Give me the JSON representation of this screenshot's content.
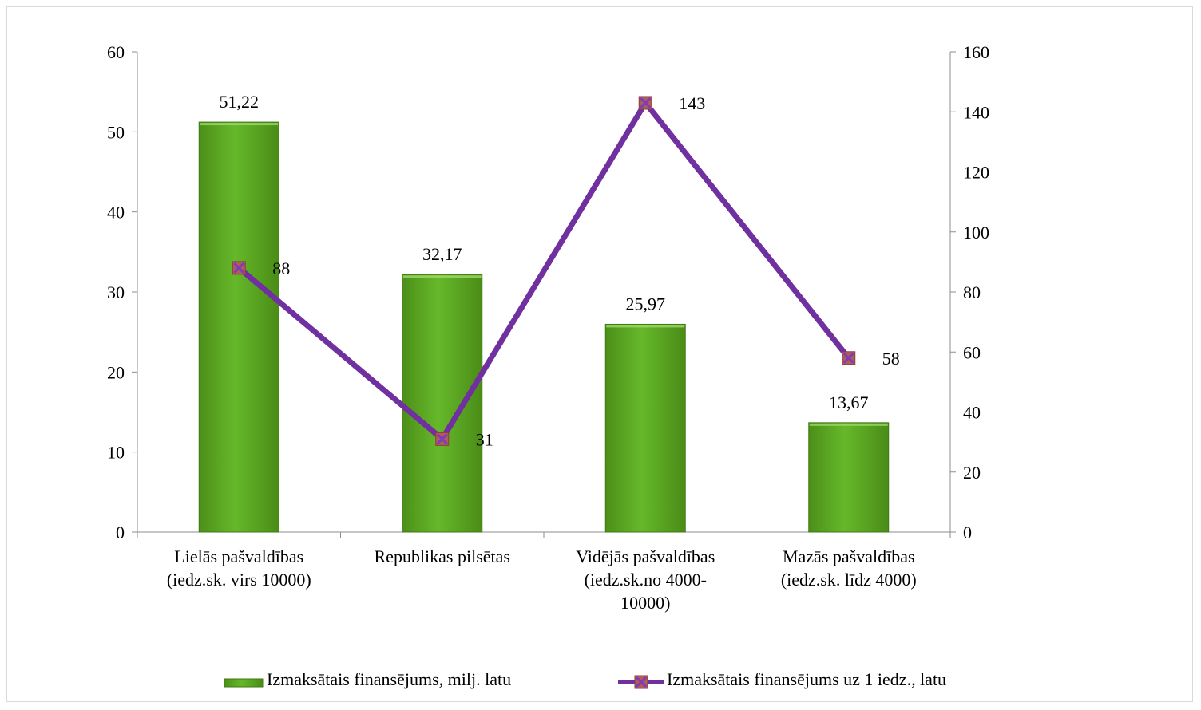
{
  "chart_data": {
    "type": "bar",
    "title": "",
    "categories": [
      [
        "Lielās pašvaldības",
        "(iedz.sk. virs 10000)"
      ],
      [
        "Republikas pilsētas"
      ],
      [
        "Vidējās pašvaldības",
        "(iedz.sk.no 4000-",
        "10000)"
      ],
      [
        "Mazās pašvaldības",
        "(iedz.sk. līdz 4000)"
      ]
    ],
    "series": [
      {
        "name": "Izmaksātais finansējums, milj. latu",
        "type": "bar",
        "axis": "left",
        "values": [
          51.22,
          32.17,
          25.97,
          13.67
        ],
        "labels": [
          "51,22",
          "32,17",
          "25,97",
          "13,67"
        ],
        "color": "#5aa51f"
      },
      {
        "name": "Izmaksātais finansējums uz 1 iedz., latu",
        "type": "line",
        "axis": "right",
        "values": [
          88,
          31,
          143,
          58
        ],
        "labels": [
          "88",
          "31",
          "143",
          "58"
        ],
        "color": "#7030a0",
        "marker_color": "#b35a5a"
      }
    ],
    "y_left": {
      "min": 0,
      "max": 60,
      "step": 10
    },
    "y_right": {
      "min": 0,
      "max": 160,
      "step": 20
    },
    "legend_position": "bottom",
    "grid": false
  }
}
